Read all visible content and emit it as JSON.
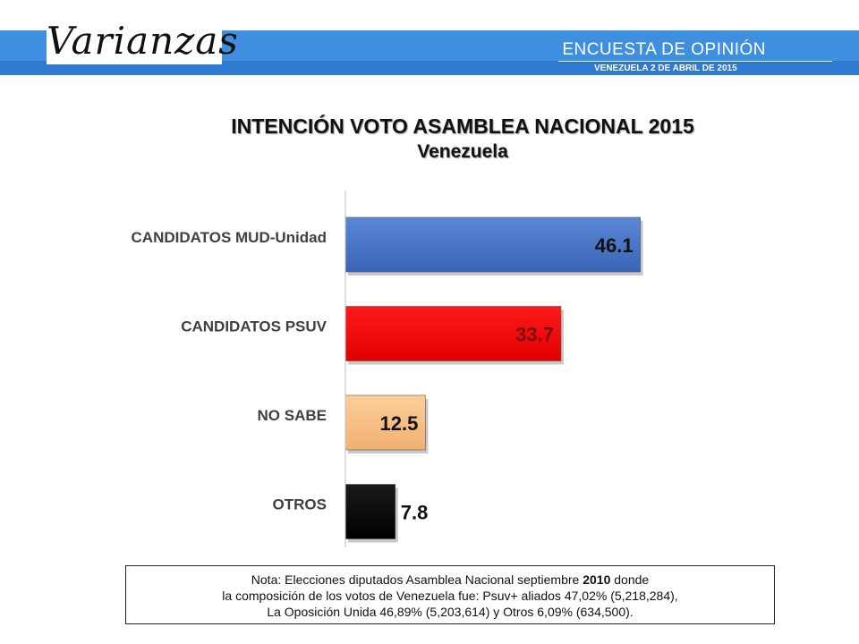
{
  "header": {
    "logo_text": "Varianzas",
    "survey_title": "ENCUESTA DE OPINIÓN",
    "survey_date": "VENEZUELA  2 DE  ABRIL DE 2015",
    "band_color": "#3f8fe0"
  },
  "chart_data": {
    "type": "bar",
    "orientation": "horizontal",
    "title": "INTENCIÓN VOTO ASAMBLEA NACIONAL 2015",
    "subtitle": "Venezuela",
    "categories": [
      "CANDIDATOS MUD-Unidad",
      "CANDIDATOS PSUV",
      "NO SABE",
      "OTROS"
    ],
    "values": [
      46.1,
      33.7,
      12.5,
      7.8
    ],
    "value_labels": [
      "46.1",
      "33.7",
      "12.5",
      "7.8"
    ],
    "colors": [
      "#4472c4",
      "#ff0000",
      "#f9c38a",
      "#000000"
    ],
    "label_colors": [
      "#111111",
      "#7a0c0c",
      "#111111",
      "#111111"
    ],
    "xlim": [
      0,
      100
    ],
    "grid": false,
    "legend": "none"
  },
  "note": {
    "line1_prefix": "Nota: Elecciones diputados Asamblea Nacional septiembre ",
    "line1_year": "2010",
    "line1_suffix": " donde",
    "line2": "la composición de los votos de Venezuela fue: Psuv+ aliados 47,02% (5,218,284),",
    "line3": "La Oposición Unida  46,89% (5,203,614) y Otros 6,09% (634,500)."
  }
}
